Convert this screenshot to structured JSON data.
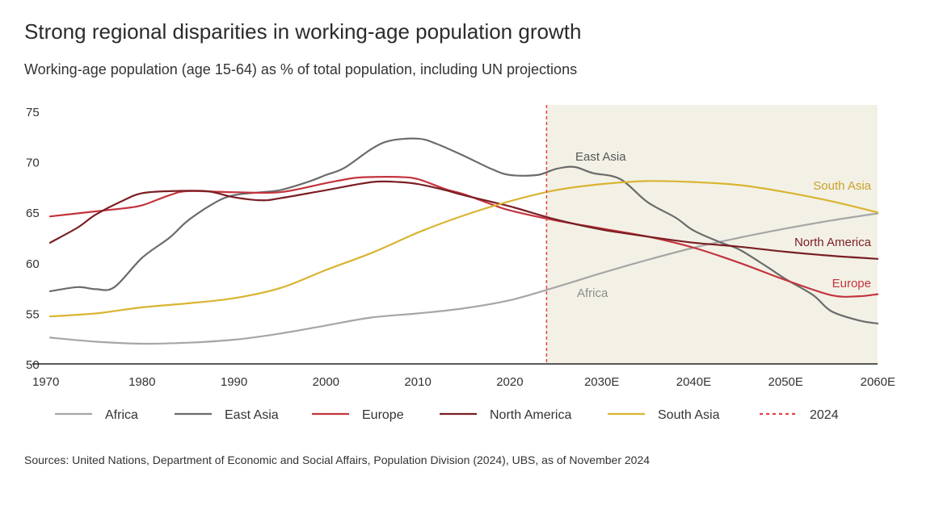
{
  "title": "Strong regional disparities in working-age population growth",
  "subtitle": "Working-age population (age 15-64) as % of total population, including UN projections",
  "sources": "Sources: United Nations, Department of Economic and Social Affairs, Population Division (2024), UBS, as of November 2024",
  "chart_data": {
    "type": "line",
    "xlim": [
      1970,
      2060
    ],
    "ylim": [
      50,
      75
    ],
    "x_ticks": [
      1970,
      1980,
      1990,
      2000,
      2010,
      2020,
      2030,
      2040,
      2050,
      2060
    ],
    "x_tick_labels": [
      "1970",
      "1980",
      "1990",
      "2000",
      "2010",
      "2020",
      "2030E",
      "2040E",
      "2050E",
      "2060E"
    ],
    "y_ticks": [
      50,
      55,
      60,
      65,
      70,
      75
    ],
    "y_tick_labels": [
      "50",
      "55",
      "60",
      "65",
      "70",
      "75"
    ],
    "projection_start": 2024,
    "projection_shade_color": "#f3f1e6",
    "marker": {
      "x": 2024,
      "label": "2024",
      "color": "#e0434b"
    },
    "grid": false,
    "legend_placement": "bottom",
    "series": [
      {
        "name": "Africa",
        "color": "#a6a6a6",
        "label": "Africa",
        "label_color": "#8c8c8c",
        "points": [
          [
            1970,
            52.6
          ],
          [
            1975,
            52.2
          ],
          [
            1980,
            52.0
          ],
          [
            1985,
            52.1
          ],
          [
            1990,
            52.4
          ],
          [
            1995,
            53.0
          ],
          [
            2000,
            53.8
          ],
          [
            2005,
            54.6
          ],
          [
            2010,
            55.0
          ],
          [
            2015,
            55.5
          ],
          [
            2020,
            56.3
          ],
          [
            2025,
            57.6
          ],
          [
            2030,
            59.0
          ],
          [
            2035,
            60.3
          ],
          [
            2040,
            61.5
          ],
          [
            2045,
            62.5
          ],
          [
            2050,
            63.4
          ],
          [
            2055,
            64.2
          ],
          [
            2060,
            64.9
          ]
        ]
      },
      {
        "name": "East Asia",
        "color": "#6b6b6b",
        "label": "East Asia",
        "label_color": "#555555",
        "points": [
          [
            1970,
            57.2
          ],
          [
            1973,
            57.6
          ],
          [
            1975,
            57.4
          ],
          [
            1977,
            57.6
          ],
          [
            1980,
            60.5
          ],
          [
            1983,
            62.5
          ],
          [
            1985,
            64.2
          ],
          [
            1988,
            66.0
          ],
          [
            1990,
            66.7
          ],
          [
            1993,
            67.0
          ],
          [
            1995,
            67.2
          ],
          [
            1998,
            68.0
          ],
          [
            2000,
            68.7
          ],
          [
            2002,
            69.4
          ],
          [
            2005,
            71.3
          ],
          [
            2007,
            72.1
          ],
          [
            2010,
            72.3
          ],
          [
            2012,
            71.8
          ],
          [
            2015,
            70.6
          ],
          [
            2018,
            69.3
          ],
          [
            2020,
            68.7
          ],
          [
            2023,
            68.7
          ],
          [
            2025,
            69.3
          ],
          [
            2027,
            69.5
          ],
          [
            2029,
            68.9
          ],
          [
            2032,
            68.3
          ],
          [
            2035,
            66.0
          ],
          [
            2038,
            64.5
          ],
          [
            2040,
            63.2
          ],
          [
            2043,
            62.0
          ],
          [
            2045,
            61.3
          ],
          [
            2048,
            59.6
          ],
          [
            2050,
            58.4
          ],
          [
            2053,
            56.8
          ],
          [
            2055,
            55.2
          ],
          [
            2058,
            54.3
          ],
          [
            2060,
            54.0
          ]
        ]
      },
      {
        "name": "Europe",
        "color": "#c3343d",
        "label": "Europe",
        "label_color": "#c3343d",
        "points": [
          [
            1970,
            64.6
          ],
          [
            1975,
            65.1
          ],
          [
            1978,
            65.4
          ],
          [
            1980,
            65.7
          ],
          [
            1983,
            66.7
          ],
          [
            1985,
            67.1
          ],
          [
            1990,
            67.0
          ],
          [
            1995,
            67.0
          ],
          [
            2000,
            67.9
          ],
          [
            2003,
            68.4
          ],
          [
            2005,
            68.5
          ],
          [
            2008,
            68.5
          ],
          [
            2010,
            68.3
          ],
          [
            2013,
            67.3
          ],
          [
            2015,
            66.8
          ],
          [
            2018,
            65.8
          ],
          [
            2020,
            65.2
          ],
          [
            2025,
            64.2
          ],
          [
            2030,
            63.4
          ],
          [
            2035,
            62.6
          ],
          [
            2040,
            61.5
          ],
          [
            2045,
            60.0
          ],
          [
            2050,
            58.3
          ],
          [
            2055,
            56.8
          ],
          [
            2058,
            56.7
          ],
          [
            2060,
            56.9
          ]
        ]
      },
      {
        "name": "North America",
        "color": "#7a1f24",
        "label": "North America",
        "label_color": "#7a1f24",
        "points": [
          [
            1970,
            62.0
          ],
          [
            1973,
            63.5
          ],
          [
            1975,
            64.8
          ],
          [
            1978,
            66.2
          ],
          [
            1980,
            66.9
          ],
          [
            1983,
            67.1
          ],
          [
            1987,
            67.1
          ],
          [
            1990,
            66.5
          ],
          [
            1993,
            66.2
          ],
          [
            1995,
            66.4
          ],
          [
            2000,
            67.2
          ],
          [
            2005,
            68.0
          ],
          [
            2008,
            68.0
          ],
          [
            2010,
            67.8
          ],
          [
            2013,
            67.2
          ],
          [
            2015,
            66.7
          ],
          [
            2020,
            65.6
          ],
          [
            2025,
            64.3
          ],
          [
            2030,
            63.3
          ],
          [
            2035,
            62.6
          ],
          [
            2040,
            62.0
          ],
          [
            2045,
            61.6
          ],
          [
            2050,
            61.1
          ],
          [
            2055,
            60.7
          ],
          [
            2060,
            60.4
          ]
        ]
      },
      {
        "name": "South Asia",
        "color": "#d9b431",
        "label": "South Asia",
        "label_color": "#c9a227",
        "points": [
          [
            1970,
            54.7
          ],
          [
            1975,
            55.0
          ],
          [
            1980,
            55.6
          ],
          [
            1985,
            56.0
          ],
          [
            1990,
            56.5
          ],
          [
            1995,
            57.5
          ],
          [
            2000,
            59.3
          ],
          [
            2005,
            61.0
          ],
          [
            2010,
            63.0
          ],
          [
            2015,
            64.7
          ],
          [
            2020,
            66.1
          ],
          [
            2025,
            67.2
          ],
          [
            2030,
            67.8
          ],
          [
            2035,
            68.1
          ],
          [
            2040,
            68.0
          ],
          [
            2045,
            67.7
          ],
          [
            2050,
            67.0
          ],
          [
            2055,
            66.1
          ],
          [
            2060,
            65.0
          ]
        ]
      }
    ],
    "legend": [
      {
        "label": "Africa",
        "color": "#a6a6a6",
        "style": "solid"
      },
      {
        "label": "East Asia",
        "color": "#6b6b6b",
        "style": "solid"
      },
      {
        "label": "Europe",
        "color": "#c3343d",
        "style": "solid"
      },
      {
        "label": "North America",
        "color": "#7a1f24",
        "style": "solid"
      },
      {
        "label": "South Asia",
        "color": "#d9b431",
        "style": "solid"
      },
      {
        "label": "2024",
        "color": "#e0434b",
        "style": "dashed"
      }
    ]
  }
}
